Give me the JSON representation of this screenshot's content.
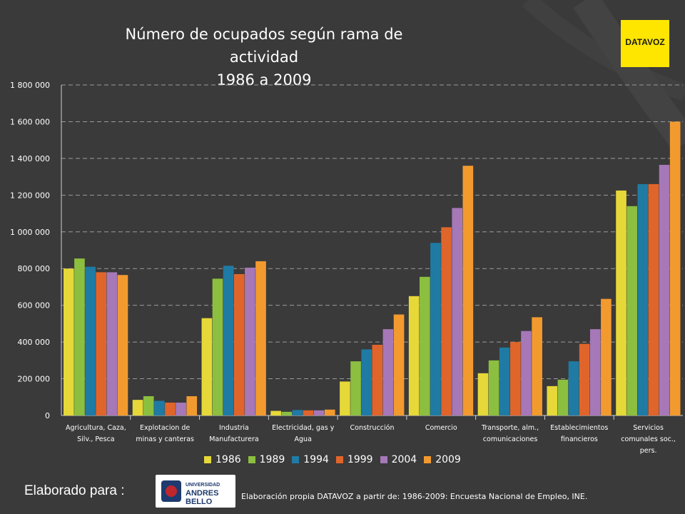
{
  "header": {
    "title_line1": "Número de ocupados según rama de actividad",
    "title_line2": "1986 a 2009"
  },
  "logo": {
    "text": "DATAVOZ"
  },
  "footer": {
    "elaborado": "Elaborado para :",
    "uab_line1": "UNIVERSIDAD",
    "uab_line2": "ANDRES BELLO",
    "source": "Elaboración propia DATAVOZ a partir de: 1986-2009: Encuesta Nacional de Empleo, INE."
  },
  "chart_data": {
    "type": "bar",
    "title": "Número de ocupados según rama de actividad 1986 a 2009",
    "ylim": [
      0,
      1800000
    ],
    "yticks": [
      0,
      200000,
      400000,
      600000,
      800000,
      1000000,
      1200000,
      1400000,
      1600000,
      1800000
    ],
    "ytick_labels": [
      "0",
      "200 000",
      "400 000",
      "600 000",
      "800 000",
      "1 000 000",
      "1 200 000",
      "1 400 000",
      "1 600 000",
      "1 800 000"
    ],
    "grid": true,
    "legend_position": "bottom",
    "categories": [
      [
        "Agricultura, Caza,",
        "Silv., Pesca"
      ],
      [
        "Explotacion de",
        "minas y canteras"
      ],
      [
        "Industria",
        "Manufacturera"
      ],
      [
        "Electricidad, gas y",
        "Agua"
      ],
      [
        "Construcción"
      ],
      [
        "Comercio"
      ],
      [
        "Transporte, alm.,",
        "comunicaciones"
      ],
      [
        "Establecimientos",
        "financieros"
      ],
      [
        "Servicios",
        "comunales soc.,",
        "pers."
      ]
    ],
    "series": [
      {
        "name": "1986",
        "color": "#e6d838",
        "values": [
          800000,
          85000,
          530000,
          25000,
          185000,
          650000,
          230000,
          160000,
          1225000
        ]
      },
      {
        "name": "1989",
        "color": "#8cbf3f",
        "values": [
          855000,
          105000,
          745000,
          20000,
          295000,
          755000,
          300000,
          195000,
          1140000
        ]
      },
      {
        "name": "1994",
        "color": "#1f7ba4",
        "values": [
          810000,
          80000,
          815000,
          30000,
          360000,
          940000,
          370000,
          295000,
          1260000
        ]
      },
      {
        "name": "1999",
        "color": "#e0652b",
        "values": [
          780000,
          70000,
          770000,
          28000,
          385000,
          1025000,
          400000,
          390000,
          1260000
        ]
      },
      {
        "name": "2004",
        "color": "#a678b8",
        "values": [
          780000,
          70000,
          805000,
          28000,
          470000,
          1130000,
          460000,
          470000,
          1365000
        ]
      },
      {
        "name": "2009",
        "color": "#f39a2f",
        "values": [
          765000,
          105000,
          840000,
          32000,
          550000,
          1360000,
          535000,
          635000,
          1600000
        ]
      }
    ]
  }
}
